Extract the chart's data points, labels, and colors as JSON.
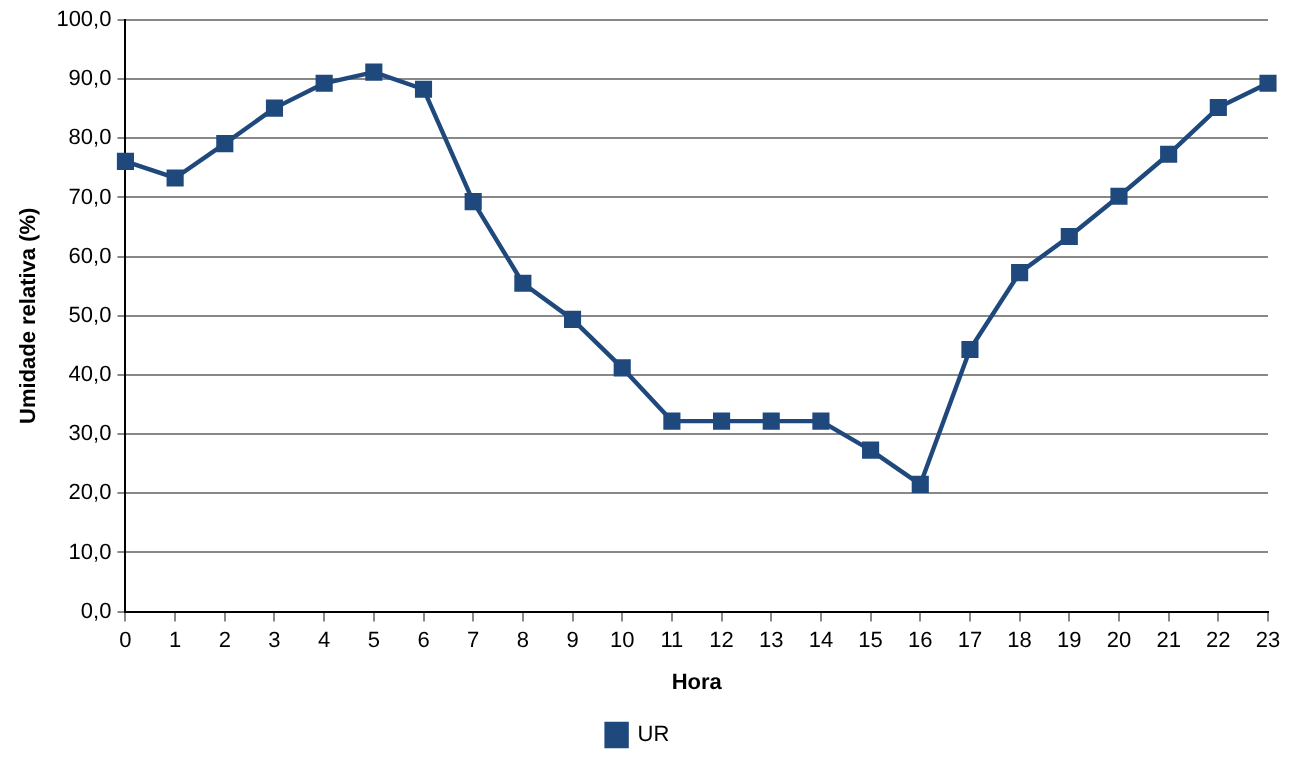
{
  "chart_data": {
    "type": "line",
    "xlabel": "Hora",
    "ylabel": "Umidade relativa (%)",
    "categories": [
      "0",
      "1",
      "2",
      "3",
      "4",
      "5",
      "6",
      "7",
      "8",
      "9",
      "10",
      "11",
      "12",
      "13",
      "14",
      "15",
      "16",
      "17",
      "18",
      "19",
      "20",
      "21",
      "22",
      "23"
    ],
    "series": [
      {
        "name": "UR",
        "color": "#1f497d",
        "values": [
          76.1,
          73.3,
          79.1,
          85.1,
          89.3,
          91.2,
          88.3,
          69.3,
          55.5,
          49.4,
          41.2,
          32.2,
          32.2,
          32.2,
          32.2,
          27.3,
          21.5,
          44.3,
          57.3,
          63.4,
          70.2,
          77.3,
          85.2,
          89.3
        ]
      }
    ],
    "ylim": [
      0,
      100
    ],
    "yticks": [
      {
        "value": 0,
        "label": "0,0"
      },
      {
        "value": 10,
        "label": "10,0"
      },
      {
        "value": 20,
        "label": "20,0"
      },
      {
        "value": 30,
        "label": "30,0"
      },
      {
        "value": 40,
        "label": "40,0"
      },
      {
        "value": 50,
        "label": "50,0"
      },
      {
        "value": 60,
        "label": "60,0"
      },
      {
        "value": 70,
        "label": "70,0"
      },
      {
        "value": 80,
        "label": "80,0"
      },
      {
        "value": 90,
        "label": "90,0"
      },
      {
        "value": 100,
        "label": "100,0"
      }
    ],
    "grid": "y",
    "legend": "bottom",
    "marker": "square",
    "line_style": "solid"
  }
}
